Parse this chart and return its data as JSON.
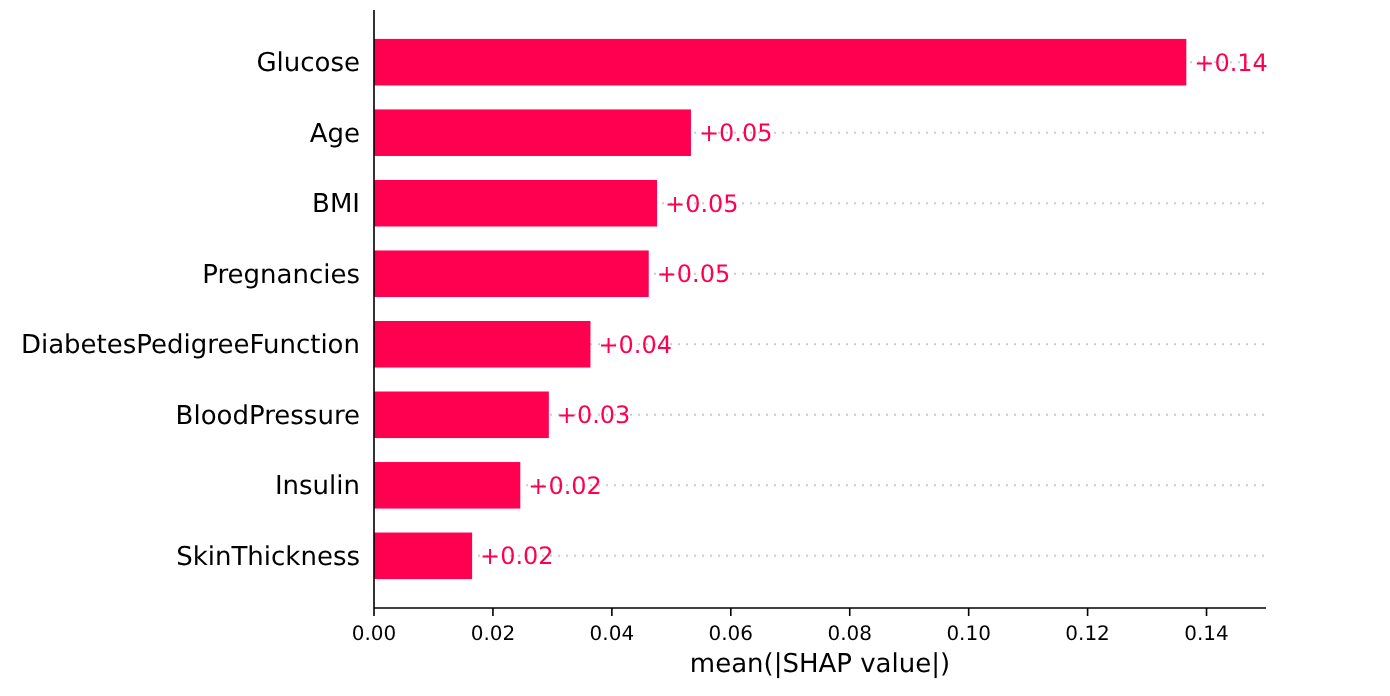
{
  "chart_data": {
    "type": "bar",
    "orientation": "horizontal",
    "xlabel": "mean(|SHAP value|)",
    "categories": [
      "Glucose",
      "Age",
      "BMI",
      "Pregnancies",
      "DiabetesPedigreeFunction",
      "BloodPressure",
      "Insulin",
      "SkinThickness"
    ],
    "values": [
      0.1366,
      0.0533,
      0.0476,
      0.0462,
      0.0364,
      0.0294,
      0.0246,
      0.0165
    ],
    "value_labels": [
      "+0.14",
      "+0.05",
      "+0.05",
      "+0.05",
      "+0.04",
      "+0.03",
      "+0.02",
      "+0.02"
    ],
    "color": "#ff0051",
    "xlim": [
      0,
      0.15
    ],
    "xticks": [
      {
        "value": 0,
        "label": "0.00"
      },
      {
        "value": 0.02,
        "label": "0.02"
      },
      {
        "value": 0.04,
        "label": "0.04"
      },
      {
        "value": 0.06,
        "label": "0.06"
      },
      {
        "value": 0.08,
        "label": "0.08"
      },
      {
        "value": 0.1,
        "label": "0.10"
      },
      {
        "value": 0.12,
        "label": "0.12"
      },
      {
        "value": 0.14,
        "label": "0.14"
      }
    ],
    "grid": "y"
  }
}
